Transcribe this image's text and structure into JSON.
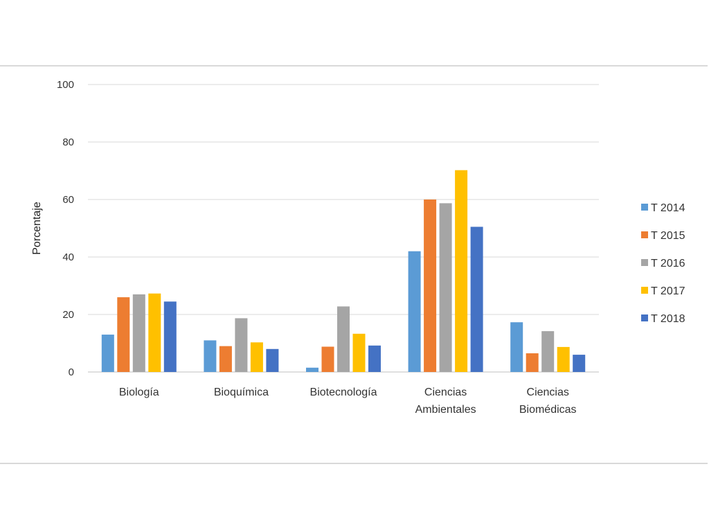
{
  "chart_data": {
    "type": "bar",
    "title": "",
    "xlabel": "",
    "ylabel": "Porcentaje",
    "ylim": [
      0,
      100
    ],
    "yticks": [
      0,
      20,
      40,
      60,
      80,
      100
    ],
    "grid": true,
    "legend_position": "right",
    "categories": [
      [
        "Biología"
      ],
      [
        "Bioquímica"
      ],
      [
        "Biotecnología"
      ],
      [
        "Ciencias",
        "Ambientales"
      ],
      [
        "Ciencias",
        "Biomédicas"
      ]
    ],
    "series": [
      {
        "name": "T 2014",
        "color": "#5B9BD5",
        "values": [
          13,
          11,
          1.5,
          42,
          17.3
        ]
      },
      {
        "name": "T 2015",
        "color": "#ED7D31",
        "values": [
          26,
          9,
          8.8,
          60,
          6.5
        ]
      },
      {
        "name": "T 2016",
        "color": "#A5A5A5",
        "values": [
          27,
          18.7,
          22.8,
          58.7,
          14.2
        ]
      },
      {
        "name": "T 2017",
        "color": "#FFC000",
        "values": [
          27.3,
          10.3,
          13.3,
          70.2,
          8.7
        ]
      },
      {
        "name": "T 2018",
        "color": "#4472C4",
        "values": [
          24.5,
          8,
          9.2,
          50.5,
          6
        ]
      }
    ]
  }
}
